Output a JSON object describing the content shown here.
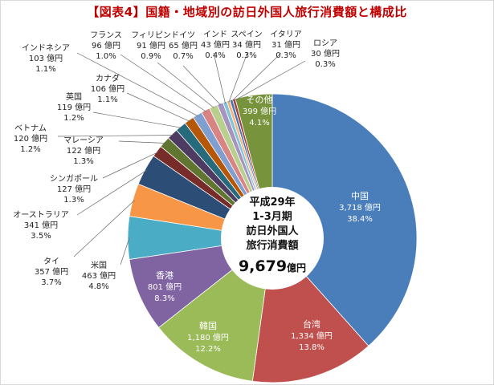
{
  "title": "【図表4】国籍・地域別の訪日外国人旅行消費額と構成比",
  "center": {
    "line1": "平成29年",
    "line2": "1-3月期",
    "line3": "訪日外国人",
    "line4": "旅行消費額",
    "total": "9,679",
    "unit": "億円"
  },
  "chart_data": {
    "type": "pie",
    "unit": "億円",
    "total": 9679,
    "direction": "clockwise from top",
    "slices": [
      {
        "name": "中国",
        "value": 3718,
        "percent": 38.4,
        "color": "#4a7ebb"
      },
      {
        "name": "台湾",
        "value": 1334,
        "percent": 13.8,
        "color": "#c0504d"
      },
      {
        "name": "韓国",
        "value": 1180,
        "percent": 12.2,
        "color": "#9bbb59"
      },
      {
        "name": "香港",
        "value": 801,
        "percent": 8.3,
        "color": "#8064a2"
      },
      {
        "name": "米国",
        "value": 463,
        "percent": 4.8,
        "color": "#4bacc6"
      },
      {
        "name": "タイ",
        "value": 357,
        "percent": 3.7,
        "color": "#f79646"
      },
      {
        "name": "オーストラリア",
        "value": 341,
        "percent": 3.5,
        "color": "#2c4d75"
      },
      {
        "name": "シンガポール",
        "value": 127,
        "percent": 1.3,
        "color": "#772c2a"
      },
      {
        "name": "マレーシア",
        "value": 122,
        "percent": 1.3,
        "color": "#5f7530"
      },
      {
        "name": "ベトナム",
        "value": 120,
        "percent": 1.2,
        "color": "#4d3b62"
      },
      {
        "name": "英国",
        "value": 119,
        "percent": 1.2,
        "color": "#276a7c"
      },
      {
        "name": "カナダ",
        "value": 106,
        "percent": 1.1,
        "color": "#b65708"
      },
      {
        "name": "インドネシア",
        "value": 103,
        "percent": 1.1,
        "color": "#7f9fd0"
      },
      {
        "name": "フランス",
        "value": 96,
        "percent": 1.0,
        "color": "#d88482"
      },
      {
        "name": "フィリピン",
        "value": 91,
        "percent": 0.9,
        "color": "#b8cf8e"
      },
      {
        "name": "ドイツ",
        "value": 65,
        "percent": 0.7,
        "color": "#a793c0"
      },
      {
        "name": "インド",
        "value": 43,
        "percent": 0.4,
        "color": "#7fc4d8"
      },
      {
        "name": "スペイン",
        "value": 34,
        "percent": 0.3,
        "color": "#f9b07a"
      },
      {
        "name": "イタリア",
        "value": 31,
        "percent": 0.3,
        "color": "#4677b0"
      },
      {
        "name": "ロシア",
        "value": 30,
        "percent": 0.3,
        "color": "#a5413e"
      },
      {
        "name": "その他",
        "value": 399,
        "percent": 4.1,
        "color": "#77933c"
      }
    ]
  }
}
